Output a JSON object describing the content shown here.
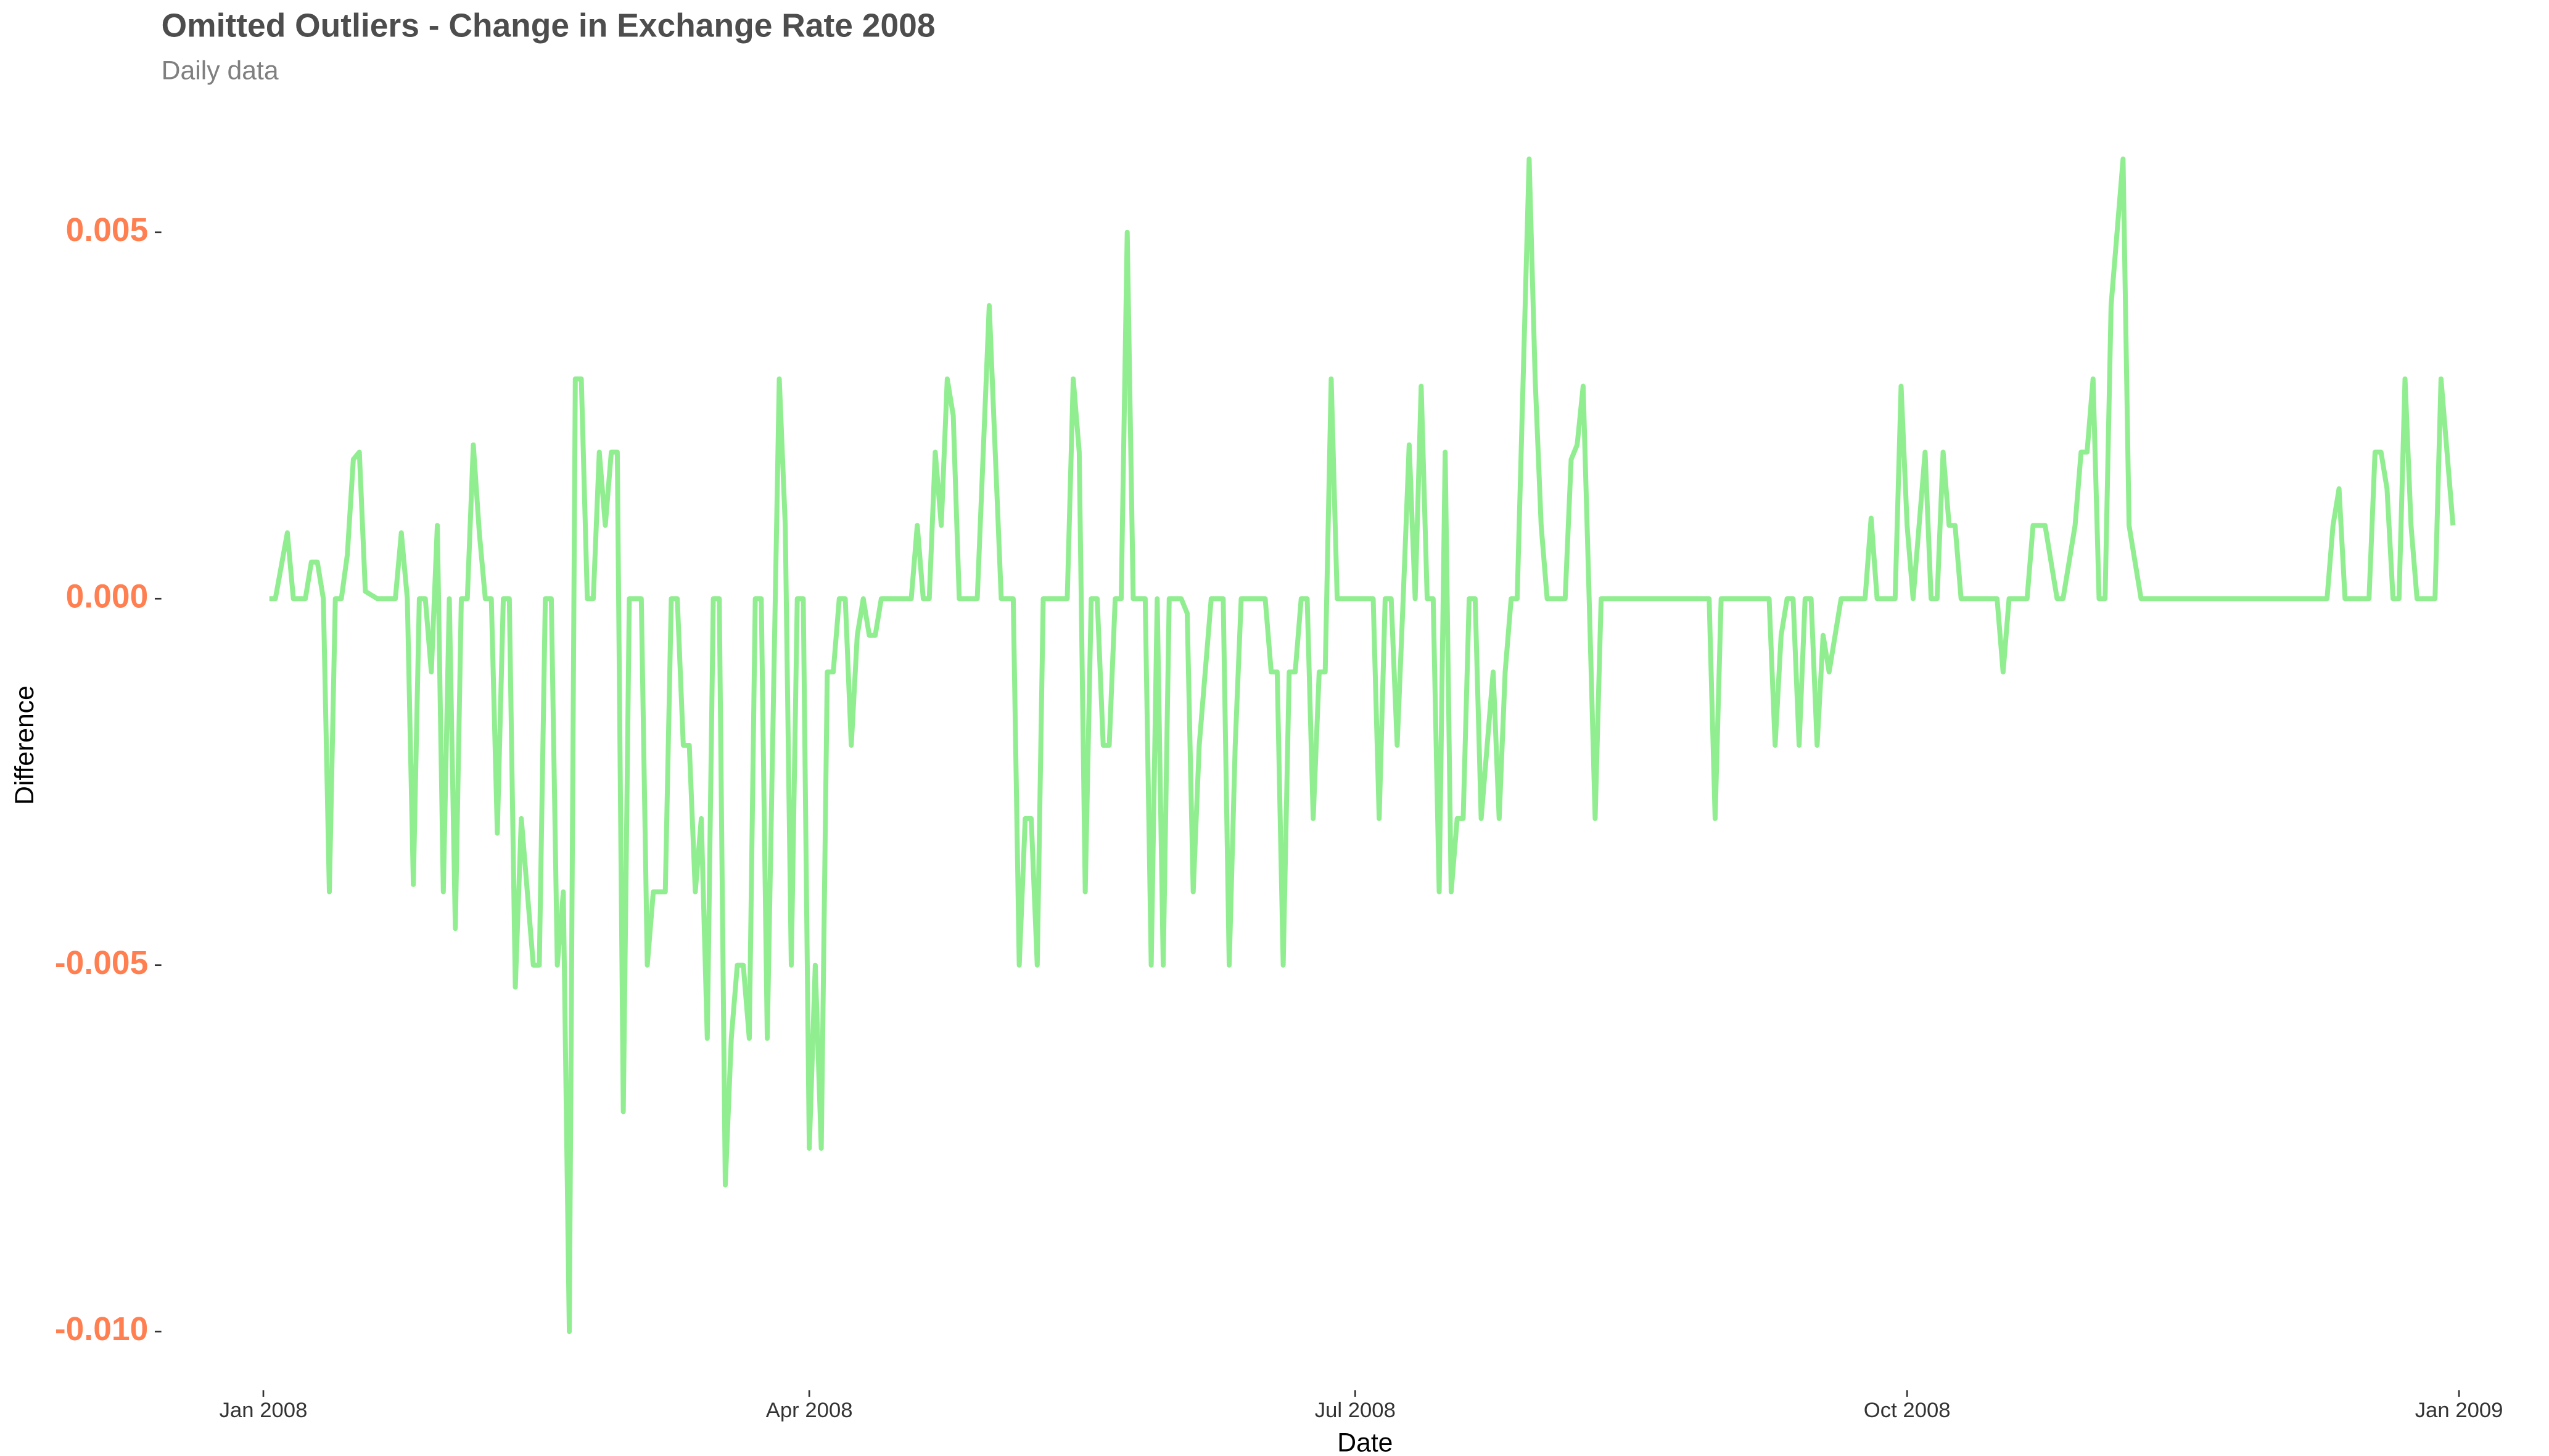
{
  "chart_data": {
    "type": "line",
    "title": "Omitted Outliers - Change in Exchange Rate 2008",
    "subtitle": "Daily data",
    "x_label": "Date",
    "y_label": "Difference",
    "color": "#90ee90",
    "grid": false,
    "xlim": [
      "2007-12-15",
      "2009-01-16"
    ],
    "xticks": [
      {
        "value": "2008-01-01",
        "label": "Jan 2008"
      },
      {
        "value": "2008-04-01",
        "label": "Apr 2008"
      },
      {
        "value": "2008-07-01",
        "label": "Jul 2008"
      },
      {
        "value": "2008-10-01",
        "label": "Oct 2008"
      },
      {
        "value": "2009-01-01",
        "label": "Jan 2009"
      }
    ],
    "ylim": [
      -0.0108,
      0.0068
    ],
    "yticks": [
      {
        "value": -0.01,
        "label": "-0.010"
      },
      -0.005,
      {
        "value": 0,
        "label": "0.000"
      },
      0.005
    ],
    "x": [
      "2008-01-02",
      "2008-01-03",
      "2008-01-05",
      "2008-01-06",
      "2008-01-08",
      "2008-01-09",
      "2008-01-10",
      "2008-01-11",
      "2008-01-12",
      "2008-01-13",
      "2008-01-14",
      "2008-01-15",
      "2008-01-16",
      "2008-01-17",
      "2008-01-18",
      "2008-01-20",
      "2008-01-23",
      "2008-01-24",
      "2008-01-25",
      "2008-01-26",
      "2008-01-27",
      "2008-01-28",
      "2008-01-29",
      "2008-01-30",
      "2008-01-31",
      "2008-02-01",
      "2008-02-02",
      "2008-02-03",
      "2008-02-04",
      "2008-02-05",
      "2008-02-06",
      "2008-02-07",
      "2008-02-08",
      "2008-02-09",
      "2008-02-10",
      "2008-02-11",
      "2008-02-12",
      "2008-02-13",
      "2008-02-15",
      "2008-02-16",
      "2008-02-17",
      "2008-02-18",
      "2008-02-19",
      "2008-02-20",
      "2008-02-21",
      "2008-02-22",
      "2008-02-23",
      "2008-02-24",
      "2008-02-25",
      "2008-02-26",
      "2008-02-27",
      "2008-02-28",
      "2008-02-29",
      "2008-03-01",
      "2008-03-02",
      "2008-03-04",
      "2008-03-05",
      "2008-03-06",
      "2008-03-08",
      "2008-03-09",
      "2008-03-10",
      "2008-03-11",
      "2008-03-12",
      "2008-03-13",
      "2008-03-14",
      "2008-03-15",
      "2008-03-16",
      "2008-03-17",
      "2008-03-18",
      "2008-03-19",
      "2008-03-20",
      "2008-03-21",
      "2008-03-22",
      "2008-03-23",
      "2008-03-24",
      "2008-03-25",
      "2008-03-27",
      "2008-03-28",
      "2008-03-29",
      "2008-03-30",
      "2008-03-31",
      "2008-04-01",
      "2008-04-02",
      "2008-04-03",
      "2008-04-04",
      "2008-04-05",
      "2008-04-06",
      "2008-04-07",
      "2008-04-08",
      "2008-04-09",
      "2008-04-10",
      "2008-04-11",
      "2008-04-12",
      "2008-04-13",
      "2008-04-18",
      "2008-04-19",
      "2008-04-20",
      "2008-04-21",
      "2008-04-22",
      "2008-04-23",
      "2008-04-24",
      "2008-04-25",
      "2008-04-26",
      "2008-04-29",
      "2008-05-01",
      "2008-05-03",
      "2008-05-05",
      "2008-05-06",
      "2008-05-07",
      "2008-05-08",
      "2008-05-09",
      "2008-05-10",
      "2008-05-14",
      "2008-05-15",
      "2008-05-16",
      "2008-05-17",
      "2008-05-18",
      "2008-05-19",
      "2008-05-20",
      "2008-05-21",
      "2008-05-22",
      "2008-05-23",
      "2008-05-24",
      "2008-05-25",
      "2008-05-27",
      "2008-05-28",
      "2008-05-29",
      "2008-05-30",
      "2008-05-31",
      "2008-06-02",
      "2008-06-03",
      "2008-06-04",
      "2008-06-05",
      "2008-06-07",
      "2008-06-09",
      "2008-06-10",
      "2008-06-11",
      "2008-06-12",
      "2008-06-16",
      "2008-06-17",
      "2008-06-18",
      "2008-06-19",
      "2008-06-20",
      "2008-06-21",
      "2008-06-22",
      "2008-06-23",
      "2008-06-24",
      "2008-06-25",
      "2008-06-26",
      "2008-06-27",
      "2008-06-28",
      "2008-07-04",
      "2008-07-05",
      "2008-07-06",
      "2008-07-07",
      "2008-07-08",
      "2008-07-09",
      "2008-07-10",
      "2008-07-11",
      "2008-07-12",
      "2008-07-13",
      "2008-07-14",
      "2008-07-15",
      "2008-07-16",
      "2008-07-17",
      "2008-07-18",
      "2008-07-19",
      "2008-07-20",
      "2008-07-21",
      "2008-07-22",
      "2008-07-23",
      "2008-07-24",
      "2008-07-25",
      "2008-07-26",
      "2008-07-27",
      "2008-07-28",
      "2008-07-30",
      "2008-07-31",
      "2008-08-01",
      "2008-08-02",
      "2008-08-05",
      "2008-08-06",
      "2008-08-07",
      "2008-08-08",
      "2008-08-09",
      "2008-08-10",
      "2008-08-11",
      "2008-08-29",
      "2008-08-30",
      "2008-08-31",
      "2008-09-08",
      "2008-09-09",
      "2008-09-10",
      "2008-09-11",
      "2008-09-12",
      "2008-09-13",
      "2008-09-14",
      "2008-09-15",
      "2008-09-16",
      "2008-09-17",
      "2008-09-18",
      "2008-09-20",
      "2008-09-24",
      "2008-09-25",
      "2008-09-26",
      "2008-09-29",
      "2008-09-30",
      "2008-10-01",
      "2008-10-02",
      "2008-10-03",
      "2008-10-04",
      "2008-10-05",
      "2008-10-06",
      "2008-10-07",
      "2008-10-08",
      "2008-10-09",
      "2008-10-10",
      "2008-10-16",
      "2008-10-17",
      "2008-10-18",
      "2008-10-21",
      "2008-10-22",
      "2008-10-24",
      "2008-10-26",
      "2008-10-27",
      "2008-10-29",
      "2008-10-30",
      "2008-10-31",
      "2008-11-01",
      "2008-11-02",
      "2008-11-03",
      "2008-11-04",
      "2008-11-06",
      "2008-11-07",
      "2008-11-09",
      "2008-12-10",
      "2008-12-11",
      "2008-12-12",
      "2008-12-13",
      "2008-12-17",
      "2008-12-18",
      "2008-12-19",
      "2008-12-20",
      "2008-12-21",
      "2008-12-22",
      "2008-12-23",
      "2008-12-24",
      "2008-12-25",
      "2008-12-28",
      "2008-12-29",
      "2008-12-30",
      "2008-12-31"
    ],
    "values": [
      0,
      0,
      0.0009,
      0,
      0,
      0.0005,
      0.0005,
      0,
      -0.004,
      0,
      0,
      0.0006,
      0.0019,
      0.002,
      0.0001,
      0,
      0,
      0.0009,
      0,
      -0.0039,
      0,
      0,
      -0.001,
      0.001,
      -0.004,
      0,
      -0.0045,
      0,
      0,
      0.0021,
      0.0009,
      0,
      0,
      -0.0032,
      0,
      0,
      -0.0053,
      -0.003,
      -0.005,
      -0.005,
      0,
      0,
      -0.005,
      -0.004,
      -0.01,
      0.003,
      0.003,
      0,
      0,
      0.002,
      0.001,
      0.002,
      0.002,
      -0.007,
      0,
      0,
      -0.005,
      -0.004,
      -0.004,
      0,
      0,
      -0.002,
      -0.002,
      -0.004,
      -0.003,
      -0.006,
      0,
      0,
      -0.008,
      -0.006,
      -0.005,
      -0.005,
      -0.006,
      0,
      0,
      -0.006,
      0.003,
      0.001,
      -0.005,
      0,
      0,
      -0.0075,
      -0.005,
      -0.0075,
      -0.001,
      -0.001,
      0,
      0,
      -0.002,
      -0.0005,
      0,
      -0.0005,
      -0.0005,
      0,
      0,
      0.001,
      0,
      0,
      0.002,
      0.001,
      0.003,
      0.0025,
      0,
      0,
      0.004,
      0,
      0,
      -0.005,
      -0.003,
      -0.003,
      -0.005,
      0,
      0,
      0.003,
      0.002,
      -0.004,
      0,
      0,
      -0.002,
      -0.002,
      0,
      0,
      0.005,
      0,
      0,
      -0.005,
      0,
      -0.005,
      0,
      0,
      -0.0002,
      -0.004,
      -0.002,
      0,
      0,
      -0.005,
      -0.002,
      0,
      0,
      -0.001,
      -0.001,
      -0.005,
      -0.001,
      -0.001,
      0,
      0,
      -0.003,
      -0.001,
      -0.001,
      0.003,
      0,
      0,
      -0.003,
      0,
      0,
      -0.002,
      0,
      0.0021,
      0,
      0.0029,
      0,
      0,
      -0.004,
      0.002,
      -0.004,
      -0.003,
      -0.003,
      0,
      0,
      -0.003,
      -0.002,
      -0.001,
      -0.003,
      -0.001,
      0,
      0,
      0.006,
      0.003,
      0.001,
      0,
      0,
      0.0019,
      0.0021,
      0.0029,
      0,
      -0.003,
      0,
      0,
      -0.003,
      0,
      0,
      -0.002,
      -0.0005,
      0,
      0,
      -0.002,
      0,
      0,
      -0.002,
      -0.0005,
      -0.001,
      0,
      0,
      0.0011,
      0,
      0,
      0.0029,
      0.001,
      0,
      0.001,
      0.002,
      0,
      0,
      0.002,
      0.001,
      0.001,
      0,
      0,
      -0.001,
      0,
      0,
      0.001,
      0.001,
      0,
      0,
      0.001,
      0.002,
      0.002,
      0.003,
      0,
      0,
      0.004,
      0.006,
      0.001,
      0,
      0,
      0.001,
      0.0015,
      0,
      0,
      0.002,
      0.002,
      0.0015,
      0,
      0,
      0.003,
      0.001,
      0,
      0,
      0.003,
      0.002,
      0.001
    ]
  }
}
